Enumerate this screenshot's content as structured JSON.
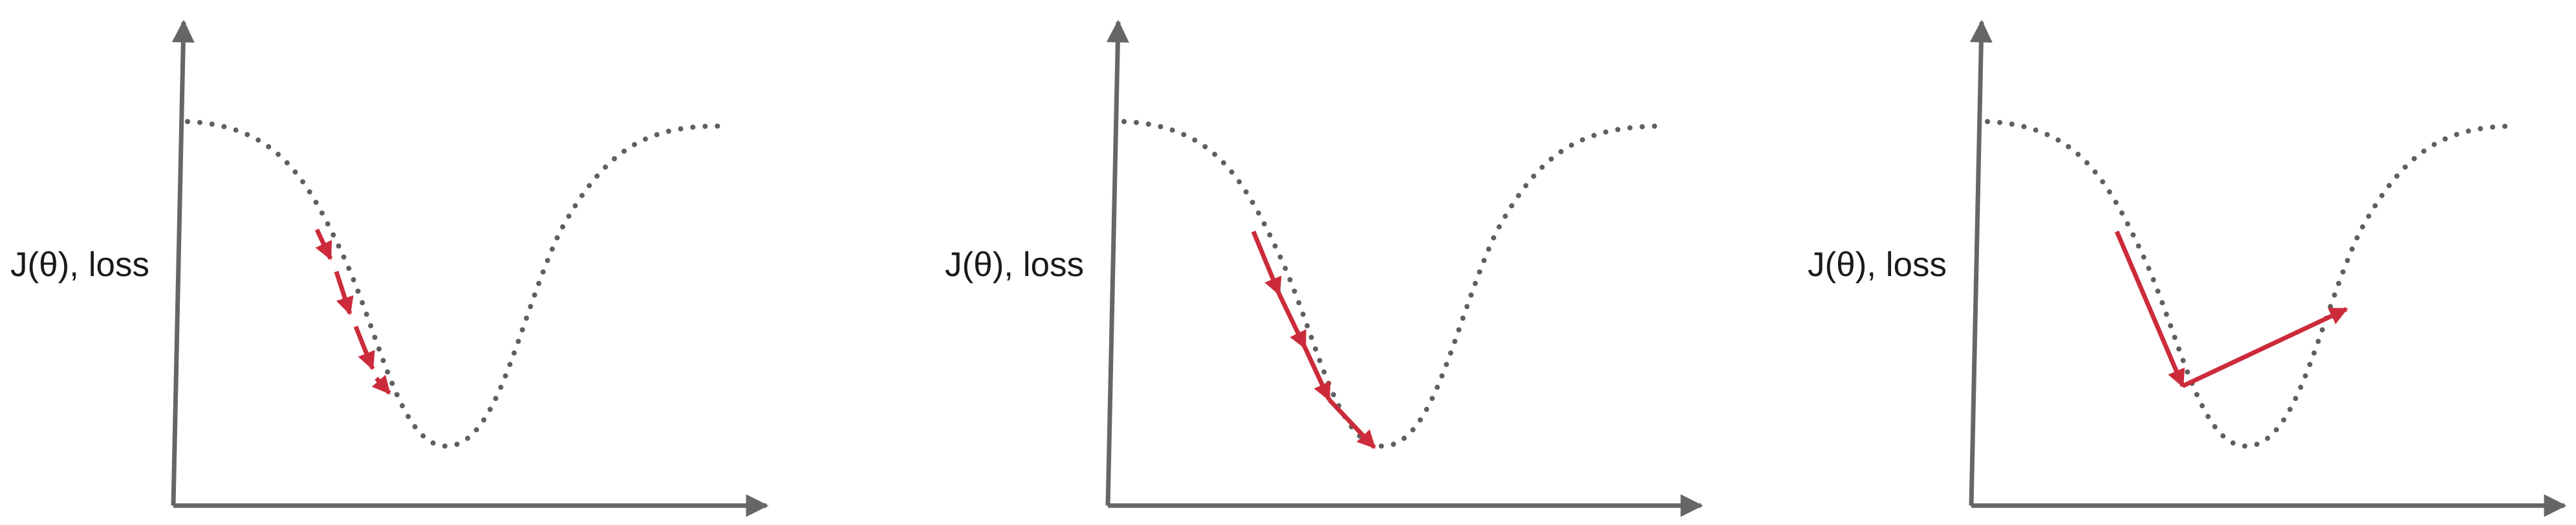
{
  "colors": {
    "axis": "#666666",
    "curve": "#5f5f5f",
    "step": "#cc2b3b",
    "text": "#1a1a1a"
  },
  "panels": [
    {
      "ylabel": "J(θ), loss"
    },
    {
      "ylabel": "J(θ), loss"
    },
    {
      "ylabel": "J(θ), loss"
    }
  ]
}
